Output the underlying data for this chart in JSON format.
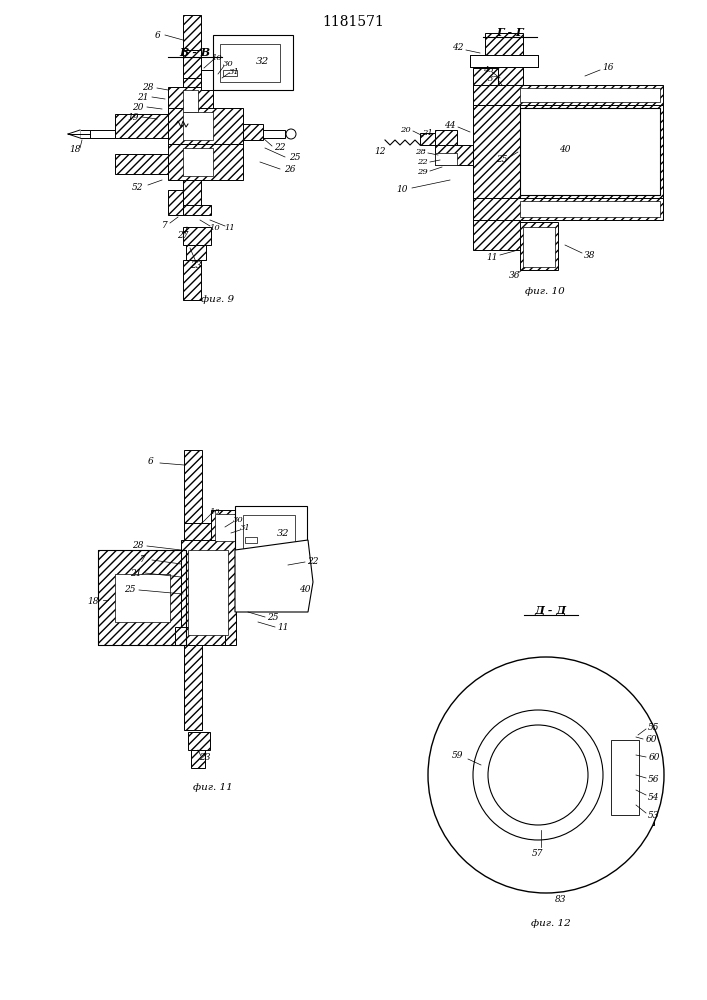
{
  "title": "1181571",
  "background_color": "#ffffff",
  "fig9_label": "фиг. 9",
  "fig10_label": "фиг. 10",
  "fig11_label": "фиг. 11",
  "fig12_label": "фиг. 12",
  "section_bb": "В - В",
  "section_gg": "Г - Г",
  "section_dd": "Д - Д"
}
